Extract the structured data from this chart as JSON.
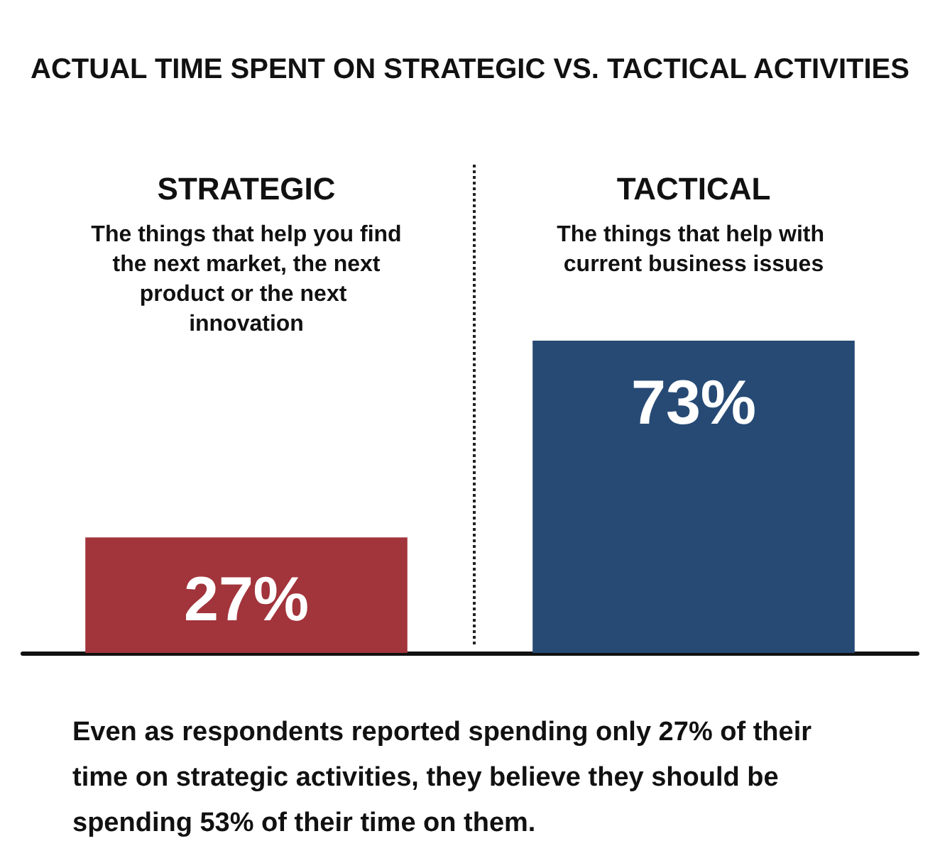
{
  "chart_data": {
    "type": "bar",
    "title": "ACTUAL TIME SPENT ON STRATEGIC VS. TACTICAL ACTIVITIES",
    "categories": [
      "STRATEGIC",
      "TACTICAL"
    ],
    "values": [
      27,
      73
    ],
    "colors": [
      "#a2343b",
      "#264a74"
    ],
    "value_labels": [
      "27%",
      "73%"
    ],
    "annotations": [
      "The things that help you find the next market, the next product or the next innovation",
      "The things that help with current business issues",
      "Even as respondents reported spending only 27% of their time on strategic activities, they believe they should be spending 53% of their time on them."
    ]
  }
}
